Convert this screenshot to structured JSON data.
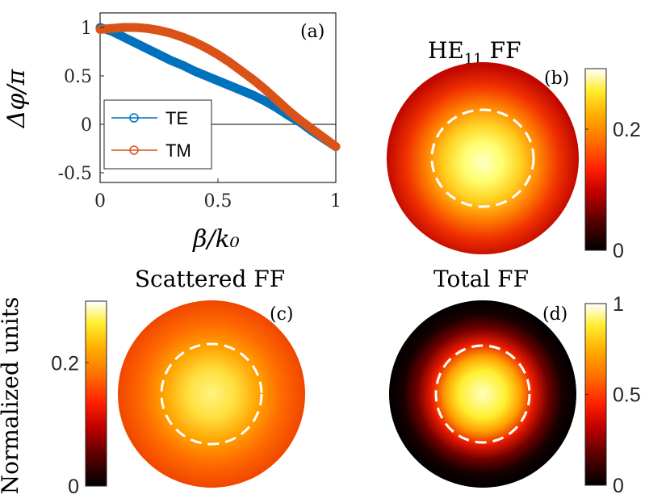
{
  "colors": {
    "te": "#0072BD",
    "tm": "#D95319",
    "axis": "#262626",
    "hot": [
      "#000000",
      "#400000",
      "#a00000",
      "#e82000",
      "#ff6000",
      "#ffa000",
      "#ffe000",
      "#ffffa0",
      "#ffffff"
    ]
  },
  "chart_data": [
    {
      "id": "a",
      "type": "line",
      "panel_label": "(a)",
      "xlabel": "β/k₀",
      "ylabel": "Δφ/π",
      "xlim": [
        0,
        1
      ],
      "ylim": [
        -0.6,
        1.15
      ],
      "x_ticks": [
        0,
        0.5,
        1
      ],
      "x_tick_labels": [
        "0",
        "0.5",
        "1"
      ],
      "y_ticks": [
        -0.5,
        0,
        0.5,
        1
      ],
      "y_tick_labels": [
        "-0.5",
        "0",
        "0.5",
        "1"
      ],
      "zero_line": true,
      "legend_position": "lower-left",
      "series": [
        {
          "name": "TE",
          "color": "#0072BD",
          "x": [
            0,
            0.05,
            0.1,
            0.15,
            0.2,
            0.25,
            0.3,
            0.35,
            0.4,
            0.45,
            0.5,
            0.55,
            0.6,
            0.65,
            0.7,
            0.75,
            0.8,
            0.85,
            0.9,
            0.95,
            1.0
          ],
          "y": [
            1.0,
            0.96,
            0.9,
            0.84,
            0.78,
            0.72,
            0.66,
            0.61,
            0.55,
            0.5,
            0.45,
            0.4,
            0.35,
            0.3,
            0.24,
            0.17,
            0.09,
            0.02,
            -0.07,
            -0.15,
            -0.23
          ]
        },
        {
          "name": "TM",
          "color": "#D95319",
          "x": [
            0,
            0.05,
            0.1,
            0.15,
            0.2,
            0.25,
            0.3,
            0.35,
            0.4,
            0.45,
            0.5,
            0.55,
            0.6,
            0.65,
            0.7,
            0.75,
            0.8,
            0.85,
            0.9,
            0.95,
            1.0
          ],
          "y": [
            0.98,
            0.99,
            1.0,
            1.0,
            0.99,
            0.97,
            0.94,
            0.9,
            0.85,
            0.79,
            0.72,
            0.64,
            0.55,
            0.46,
            0.36,
            0.25,
            0.14,
            0.04,
            -0.05,
            -0.14,
            -0.23
          ]
        }
      ]
    },
    {
      "id": "b",
      "type": "heatmap",
      "title_main": "HE",
      "title_sub": "11",
      "title_rest": " FF",
      "panel_label": "(b)",
      "colorbar_ticks": [
        0,
        0.2
      ],
      "colorbar_tick_labels": [
        "0",
        "0.2"
      ],
      "colorbar_range": [
        0,
        0.3
      ],
      "center_value": 0.3,
      "edge_value": 0.1,
      "dashed_circle": true
    },
    {
      "id": "c",
      "type": "heatmap",
      "title": "Scattered FF",
      "panel_label": "(c)",
      "colorbar_label": "Normalized units",
      "colorbar_ticks": [
        0,
        0.2
      ],
      "colorbar_tick_labels": [
        "0",
        "0.2"
      ],
      "colorbar_range": [
        0,
        0.3
      ],
      "center_value": 0.28,
      "edge_value": 0.15,
      "dashed_circle": true
    },
    {
      "id": "d",
      "type": "heatmap",
      "title": "Total FF",
      "panel_label": "(d)",
      "colorbar_ticks": [
        0,
        0.5,
        1
      ],
      "colorbar_tick_labels": [
        "0",
        "0.5",
        "1"
      ],
      "colorbar_range": [
        0,
        1
      ],
      "center_value": 0.95,
      "edge_value": 0.0,
      "dashed_circle": true
    }
  ]
}
